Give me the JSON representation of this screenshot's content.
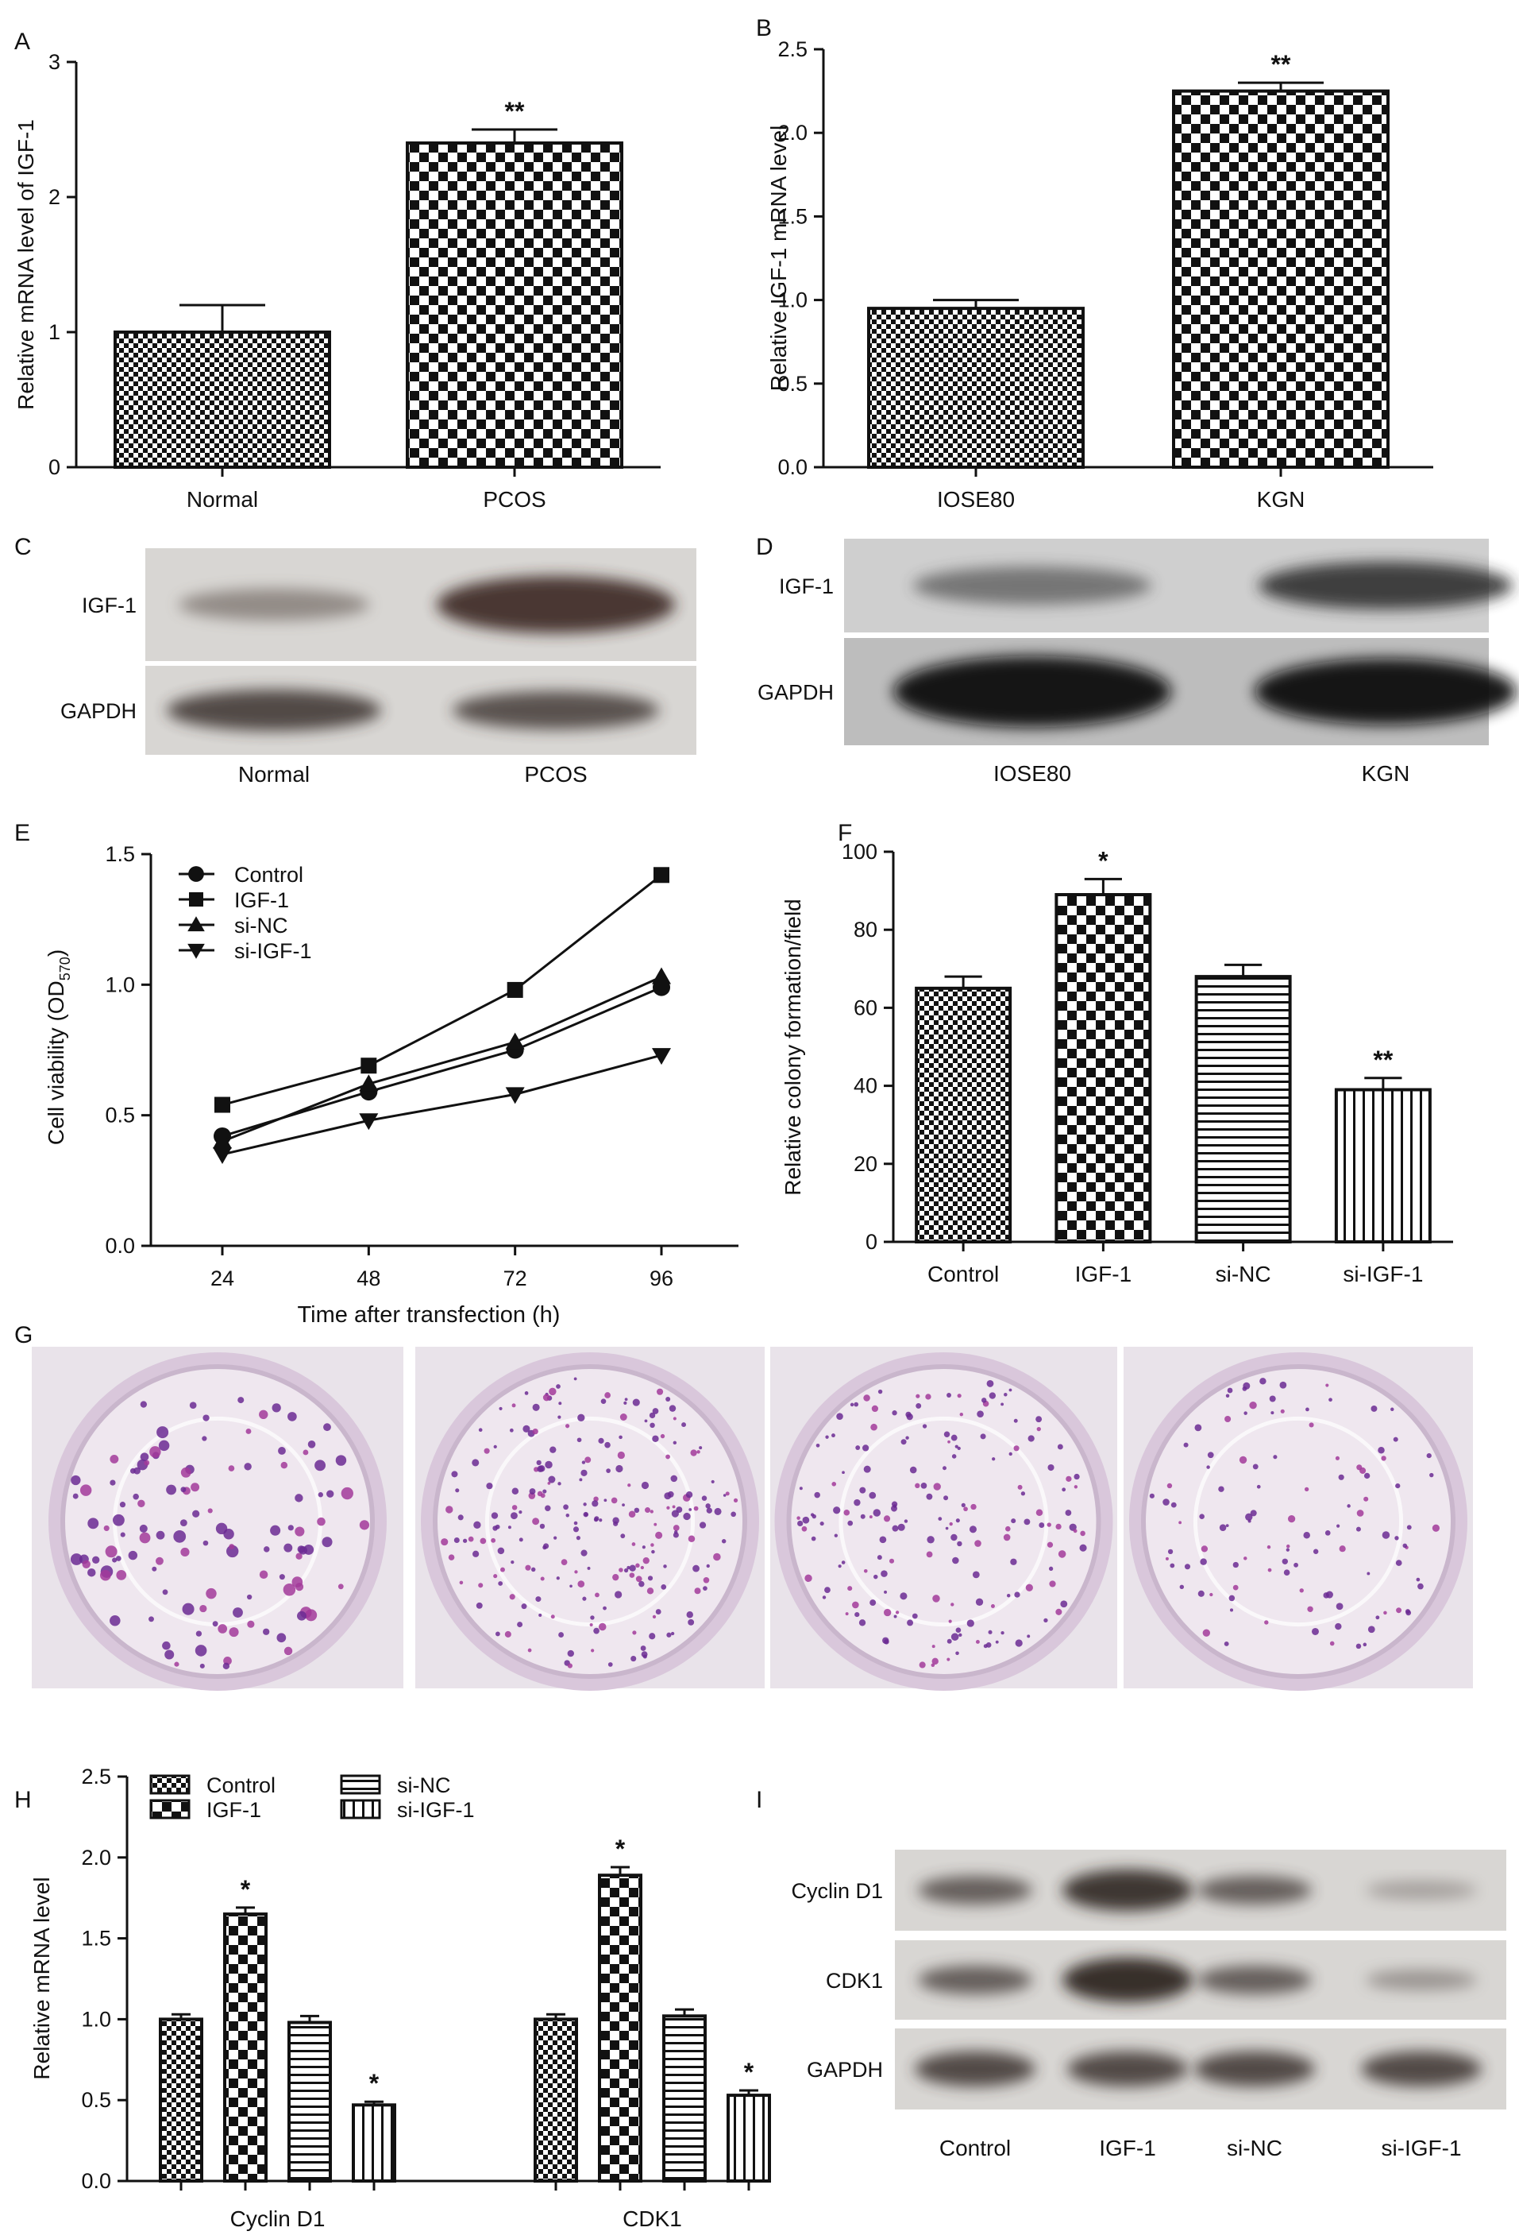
{
  "panel_letters": [
    "A",
    "B",
    "C",
    "D",
    "E",
    "F",
    "G",
    "H",
    "I"
  ],
  "colors": {
    "axis": "#111111",
    "bar_fill": "#ffffff",
    "pattern_ink": "#111111",
    "blot_bg": "#d8d6d3",
    "plate_bg": "#e6dde6",
    "colony": "#7a2c9c"
  },
  "chart_data": [
    {
      "panel": "A",
      "type": "bar",
      "categories": [
        "Normal",
        "PCOS"
      ],
      "values": [
        1.0,
        2.4
      ],
      "errors": [
        0.2,
        0.1
      ],
      "patterns": [
        "fine-check",
        "coarse-check"
      ],
      "annotations": [
        "",
        "**"
      ],
      "ylabel": "Relative mRNA level of IGF-1",
      "ylim": [
        0,
        3
      ],
      "yticks": [
        "0",
        "1",
        "2",
        "3"
      ],
      "ytick_values": [
        0,
        1,
        2,
        3
      ],
      "grid": false
    },
    {
      "panel": "B",
      "type": "bar",
      "categories": [
        "IOSE80",
        "KGN"
      ],
      "values": [
        0.95,
        2.25
      ],
      "errors": [
        0.05,
        0.05
      ],
      "patterns": [
        "fine-check",
        "coarse-check"
      ],
      "annotations": [
        "",
        "**"
      ],
      "ylabel": "Relative IGF-1 mRNA level",
      "ylim": [
        0,
        2.5
      ],
      "yticks": [
        "0.0",
        "0.5",
        "1.0",
        "1.5",
        "2.0",
        "2.5"
      ],
      "ytick_values": [
        0,
        0.5,
        1,
        1.5,
        2,
        2.5
      ],
      "grid": false
    },
    {
      "panel": "E",
      "type": "line",
      "x": [
        24,
        48,
        72,
        96
      ],
      "xticks": [
        "24",
        "48",
        "72",
        "96"
      ],
      "series": [
        {
          "name": "Control",
          "marker": "circle",
          "values": [
            0.42,
            0.59,
            0.75,
            0.99
          ]
        },
        {
          "name": "IGF-1",
          "marker": "square",
          "values": [
            0.54,
            0.69,
            0.98,
            1.42
          ]
        },
        {
          "name": "si-NC",
          "marker": "triangle-up",
          "values": [
            0.4,
            0.62,
            0.78,
            1.03
          ]
        },
        {
          "name": "si-IGF-1",
          "marker": "triangle-down",
          "values": [
            0.35,
            0.48,
            0.58,
            0.73
          ]
        }
      ],
      "xlabel": "Time after transfection (h)",
      "ylabel_main": "Cell viability (OD",
      "ylabel_sub": "570",
      "ylabel_end": ")",
      "ylim": [
        0,
        1.5
      ],
      "yticks": [
        "0.0",
        "0.5",
        "1.0",
        "1.5"
      ],
      "ytick_values": [
        0,
        0.5,
        1,
        1.5
      ],
      "legend": "top-left",
      "grid": false
    },
    {
      "panel": "F",
      "type": "bar",
      "categories": [
        "Control",
        "IGF-1",
        "si-NC",
        "si-IGF-1"
      ],
      "values": [
        65,
        89,
        68,
        39
      ],
      "errors": [
        3,
        4,
        3,
        3
      ],
      "patterns": [
        "fine-check",
        "coarse-check",
        "hlines",
        "vlines"
      ],
      "annotations": [
        "",
        "*",
        "",
        "**"
      ],
      "ylabel": "Relative colony formation/field",
      "ylim": [
        0,
        100
      ],
      "yticks": [
        "0",
        "20",
        "40",
        "60",
        "80",
        "100"
      ],
      "ytick_values": [
        0,
        20,
        40,
        60,
        80,
        100
      ],
      "grid": false
    },
    {
      "panel": "H",
      "type": "bar",
      "categories": [
        "Cyclin D1",
        "CDK1"
      ],
      "series": [
        {
          "name": "Control",
          "pattern": "fine-check",
          "values": [
            1.0,
            1.0
          ],
          "errors": [
            0.03,
            0.03
          ],
          "annotations": [
            "",
            ""
          ]
        },
        {
          "name": "IGF-1",
          "pattern": "coarse-check",
          "values": [
            1.65,
            1.89
          ],
          "errors": [
            0.04,
            0.05
          ],
          "annotations": [
            "*",
            "*"
          ]
        },
        {
          "name": "si-NC",
          "pattern": "hlines",
          "values": [
            0.98,
            1.02
          ],
          "errors": [
            0.04,
            0.04
          ],
          "annotations": [
            "",
            ""
          ]
        },
        {
          "name": "si-IGF-1",
          "pattern": "vlines",
          "values": [
            0.47,
            0.53
          ],
          "errors": [
            0.02,
            0.03
          ],
          "annotations": [
            "*",
            "*"
          ]
        }
      ],
      "ylabel": "Relative mRNA level",
      "ylim": [
        0,
        2.5
      ],
      "yticks": [
        "0.0",
        "0.5",
        "1.0",
        "1.5",
        "2.0",
        "2.5"
      ],
      "ytick_values": [
        0,
        0.5,
        1,
        1.5,
        2,
        2.5
      ],
      "legend": "top",
      "grid": false
    }
  ],
  "blots": {
    "C": {
      "rows": [
        "IGF-1",
        "GAPDH"
      ],
      "lanes": [
        "Normal",
        "PCOS"
      ]
    },
    "D": {
      "rows": [
        "IGF-1",
        "GAPDH"
      ],
      "lanes": [
        "IOSE80",
        "KGN"
      ]
    },
    "I": {
      "rows": [
        "Cyclin D1",
        "CDK1",
        "GAPDH"
      ],
      "lanes": [
        "Control",
        "IGF-1",
        "si-NC",
        "si-IGF-1"
      ]
    }
  }
}
